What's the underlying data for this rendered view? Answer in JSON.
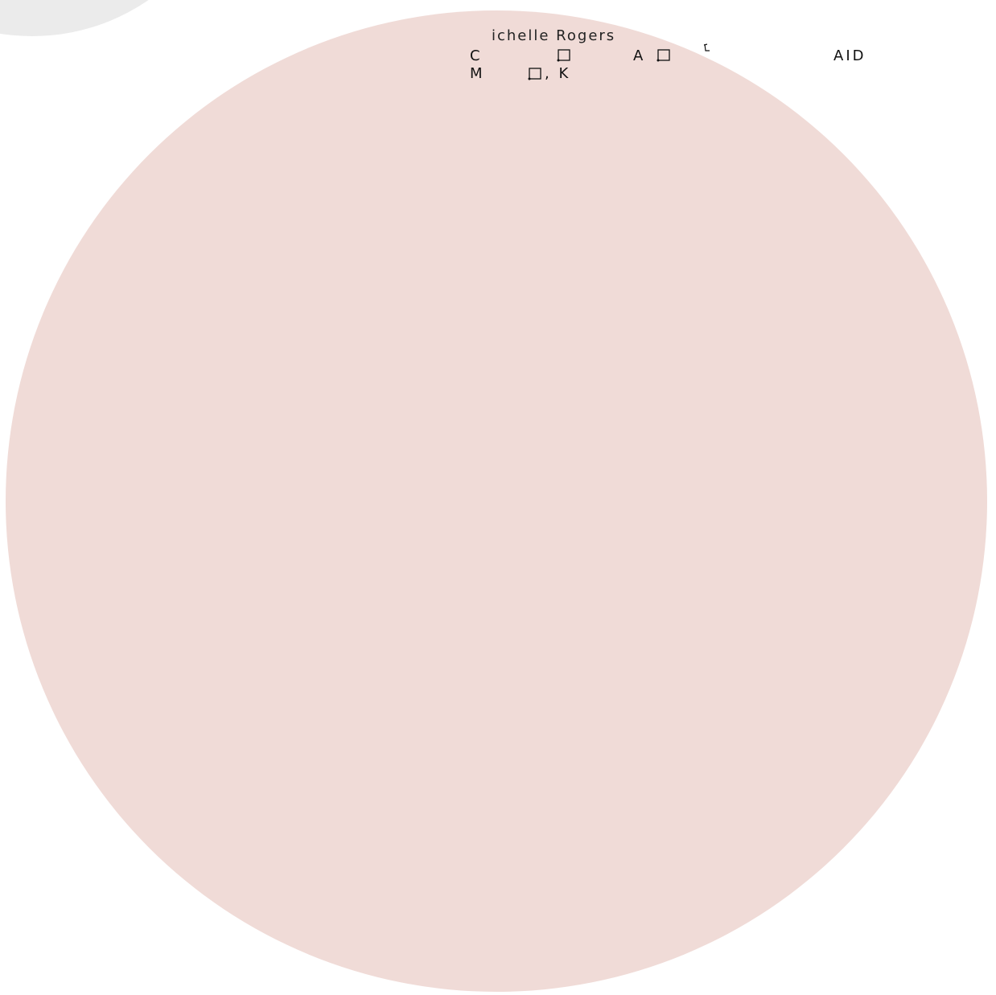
{
  "header": {
    "name": "ichelle Rogers"
  },
  "line1": [
    "C",
    "A",
    "AID"
  ],
  "line2": [
    "M",
    ", K"
  ]
}
